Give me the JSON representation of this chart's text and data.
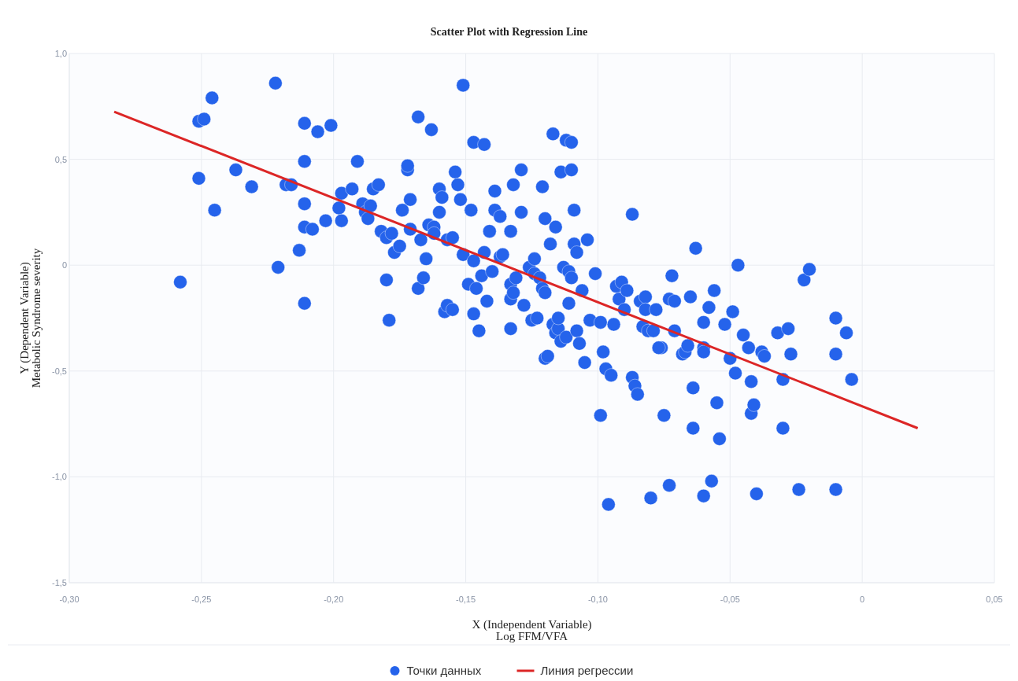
{
  "chart_data": {
    "type": "scatter",
    "title": "Scatter Plot with Regression Line",
    "xlabel": "X (Independent Variable)\nLog FFM/VFA",
    "ylabel": "Y (Dependent Variable)\nMetabolic Syndrome severity",
    "legend": "bottom",
    "grid": true,
    "xlim": [
      -0.3,
      0.05
    ],
    "ylim": [
      -1.5,
      1.0
    ],
    "xticks": [
      {
        "value": -0.3,
        "label": "-0,30"
      },
      {
        "value": -0.25,
        "label": "-0,25"
      },
      {
        "value": -0.2,
        "label": "-0,20"
      },
      {
        "value": -0.15,
        "label": "-0,15"
      },
      {
        "value": -0.1,
        "label": "-0,10"
      },
      {
        "value": -0.05,
        "label": "-0,05"
      },
      {
        "value": 0,
        "label": "0"
      },
      {
        "value": 0.05,
        "label": "0,05"
      }
    ],
    "yticks": [
      {
        "value": -1.5,
        "label": "-1,5"
      },
      {
        "value": -1.0,
        "label": "-1,0"
      },
      {
        "value": -0.5,
        "label": "-0,5"
      },
      {
        "value": 0,
        "label": "0"
      },
      {
        "value": 0.5,
        "label": "0,5"
      },
      {
        "value": 1.0,
        "label": "1,0"
      }
    ],
    "series": [
      {
        "name": "Точки данных",
        "marker": "circle",
        "color": "#2563eb",
        "x": [
          -0.258,
          -0.251,
          -0.249,
          -0.246,
          -0.251,
          -0.245,
          -0.237,
          -0.231,
          -0.222,
          -0.221,
          -0.218,
          -0.216,
          -0.213,
          -0.211,
          -0.211,
          -0.211,
          -0.211,
          -0.211,
          -0.208,
          -0.206,
          -0.203,
          -0.201,
          -0.198,
          -0.197,
          -0.197,
          -0.193,
          -0.191,
          -0.189,
          -0.188,
          -0.187,
          -0.186,
          -0.185,
          -0.183,
          -0.182,
          -0.18,
          -0.18,
          -0.179,
          -0.178,
          -0.177,
          -0.175,
          -0.174,
          -0.172,
          -0.172,
          -0.171,
          -0.171,
          -0.168,
          -0.168,
          -0.167,
          -0.166,
          -0.165,
          -0.164,
          -0.163,
          -0.162,
          -0.162,
          -0.16,
          -0.16,
          -0.159,
          -0.158,
          -0.157,
          -0.155,
          -0.157,
          -0.155,
          -0.154,
          -0.153,
          -0.152,
          -0.151,
          -0.151,
          -0.149,
          -0.148,
          -0.147,
          -0.147,
          -0.147,
          -0.146,
          -0.145,
          -0.144,
          -0.143,
          -0.143,
          -0.142,
          -0.141,
          -0.14,
          -0.139,
          -0.139,
          -0.137,
          -0.137,
          -0.136,
          -0.133,
          -0.133,
          -0.133,
          -0.132,
          -0.132,
          -0.131,
          -0.133,
          -0.129,
          -0.129,
          -0.128,
          -0.126,
          -0.125,
          -0.124,
          -0.124,
          -0.123,
          -0.122,
          -0.121,
          -0.121,
          -0.12,
          -0.12,
          -0.12,
          -0.119,
          -0.118,
          -0.117,
          -0.116,
          -0.117,
          -0.116,
          -0.115,
          -0.115,
          -0.114,
          -0.114,
          -0.113,
          -0.112,
          -0.112,
          -0.111,
          -0.111,
          -0.11,
          -0.11,
          -0.11,
          -0.109,
          -0.109,
          -0.108,
          -0.108,
          -0.107,
          -0.106,
          -0.105,
          -0.104,
          -0.103,
          -0.101,
          -0.099,
          -0.099,
          -0.098,
          -0.097,
          -0.096,
          -0.095,
          -0.094,
          -0.093,
          -0.092,
          -0.091,
          -0.09,
          -0.089,
          -0.087,
          -0.087,
          -0.086,
          -0.085,
          -0.084,
          -0.083,
          -0.082,
          -0.082,
          -0.081,
          -0.08,
          -0.079,
          -0.078,
          -0.076,
          -0.075,
          -0.077,
          -0.073,
          -0.073,
          -0.072,
          -0.071,
          -0.071,
          -0.068,
          -0.067,
          -0.066,
          -0.065,
          -0.064,
          -0.064,
          -0.063,
          -0.06,
          -0.06,
          -0.06,
          -0.06,
          -0.058,
          -0.057,
          -0.056,
          -0.055,
          -0.054,
          -0.052,
          -0.05,
          -0.049,
          -0.048,
          -0.047,
          -0.045,
          -0.043,
          -0.042,
          -0.042,
          -0.041,
          -0.04,
          -0.038,
          -0.037,
          -0.032,
          -0.03,
          -0.028,
          -0.027,
          -0.024,
          -0.022,
          -0.02,
          -0.01,
          -0.01,
          -0.01,
          -0.006,
          -0.004,
          -0.03
        ],
        "values": [
          -0.08,
          0.68,
          0.69,
          0.79,
          0.41,
          0.26,
          0.45,
          0.37,
          0.86,
          -0.01,
          0.38,
          0.38,
          0.07,
          0.67,
          0.49,
          0.29,
          0.18,
          -0.18,
          0.17,
          0.63,
          0.21,
          0.66,
          0.27,
          0.34,
          0.21,
          0.36,
          0.49,
          0.29,
          0.25,
          0.22,
          0.28,
          0.36,
          0.38,
          0.16,
          0.13,
          -0.07,
          -0.26,
          0.15,
          0.06,
          0.09,
          0.26,
          0.45,
          0.47,
          0.31,
          0.17,
          -0.11,
          0.7,
          0.12,
          -0.06,
          0.03,
          0.19,
          0.64,
          0.18,
          0.15,
          0.36,
          0.25,
          0.32,
          -0.22,
          -0.19,
          -0.21,
          0.12,
          0.13,
          0.44,
          0.38,
          0.31,
          0.85,
          0.05,
          -0.09,
          0.26,
          0.58,
          0.02,
          -0.23,
          -0.11,
          -0.31,
          -0.05,
          0.57,
          0.06,
          -0.17,
          0.16,
          -0.03,
          0.35,
          0.26,
          0.23,
          0.04,
          0.05,
          -0.09,
          -0.16,
          0.16,
          0.38,
          -0.13,
          -0.06,
          -0.3,
          0.25,
          0.45,
          -0.19,
          -0.01,
          -0.26,
          0.03,
          -0.04,
          -0.25,
          -0.06,
          0.37,
          -0.11,
          -0.13,
          0.22,
          -0.44,
          -0.43,
          0.1,
          0.62,
          0.18,
          -0.28,
          -0.32,
          -0.3,
          -0.25,
          0.44,
          -0.36,
          -0.01,
          0.59,
          -0.34,
          -0.18,
          -0.03,
          0.58,
          0.45,
          -0.06,
          0.26,
          0.1,
          0.06,
          -0.31,
          -0.37,
          -0.12,
          -0.46,
          0.12,
          -0.26,
          -0.04,
          -0.27,
          -0.71,
          -0.41,
          -0.49,
          -1.13,
          -0.52,
          -0.28,
          -0.1,
          -0.16,
          -0.08,
          -0.21,
          -0.12,
          0.24,
          -0.53,
          -0.57,
          -0.61,
          -0.17,
          -0.29,
          -0.15,
          -0.21,
          -0.31,
          -1.1,
          -0.31,
          -0.21,
          -0.39,
          -0.71,
          -0.39,
          -1.04,
          -0.16,
          -0.05,
          -0.31,
          -0.17,
          -0.42,
          -0.41,
          -0.38,
          -0.15,
          -0.58,
          -0.77,
          0.08,
          -0.27,
          -1.09,
          -0.39,
          -0.41,
          -0.2,
          -1.02,
          -0.12,
          -0.65,
          -0.82,
          -0.28,
          -0.44,
          -0.22,
          -0.51,
          0.0,
          -0.33,
          -0.39,
          -0.55,
          -0.7,
          -0.66,
          -1.08,
          -0.41,
          -0.43,
          -0.32,
          -0.77,
          -0.3,
          -0.42,
          -1.06,
          -0.07,
          -0.02,
          -0.25,
          -0.42,
          -1.06,
          -0.32,
          -0.54,
          -0.54
        ]
      },
      {
        "name": "Линия регрессии",
        "type": "line",
        "color": "#dc2626",
        "x": [
          -0.283,
          0.021
        ],
        "values": [
          0.725,
          -0.77
        ]
      }
    ]
  }
}
